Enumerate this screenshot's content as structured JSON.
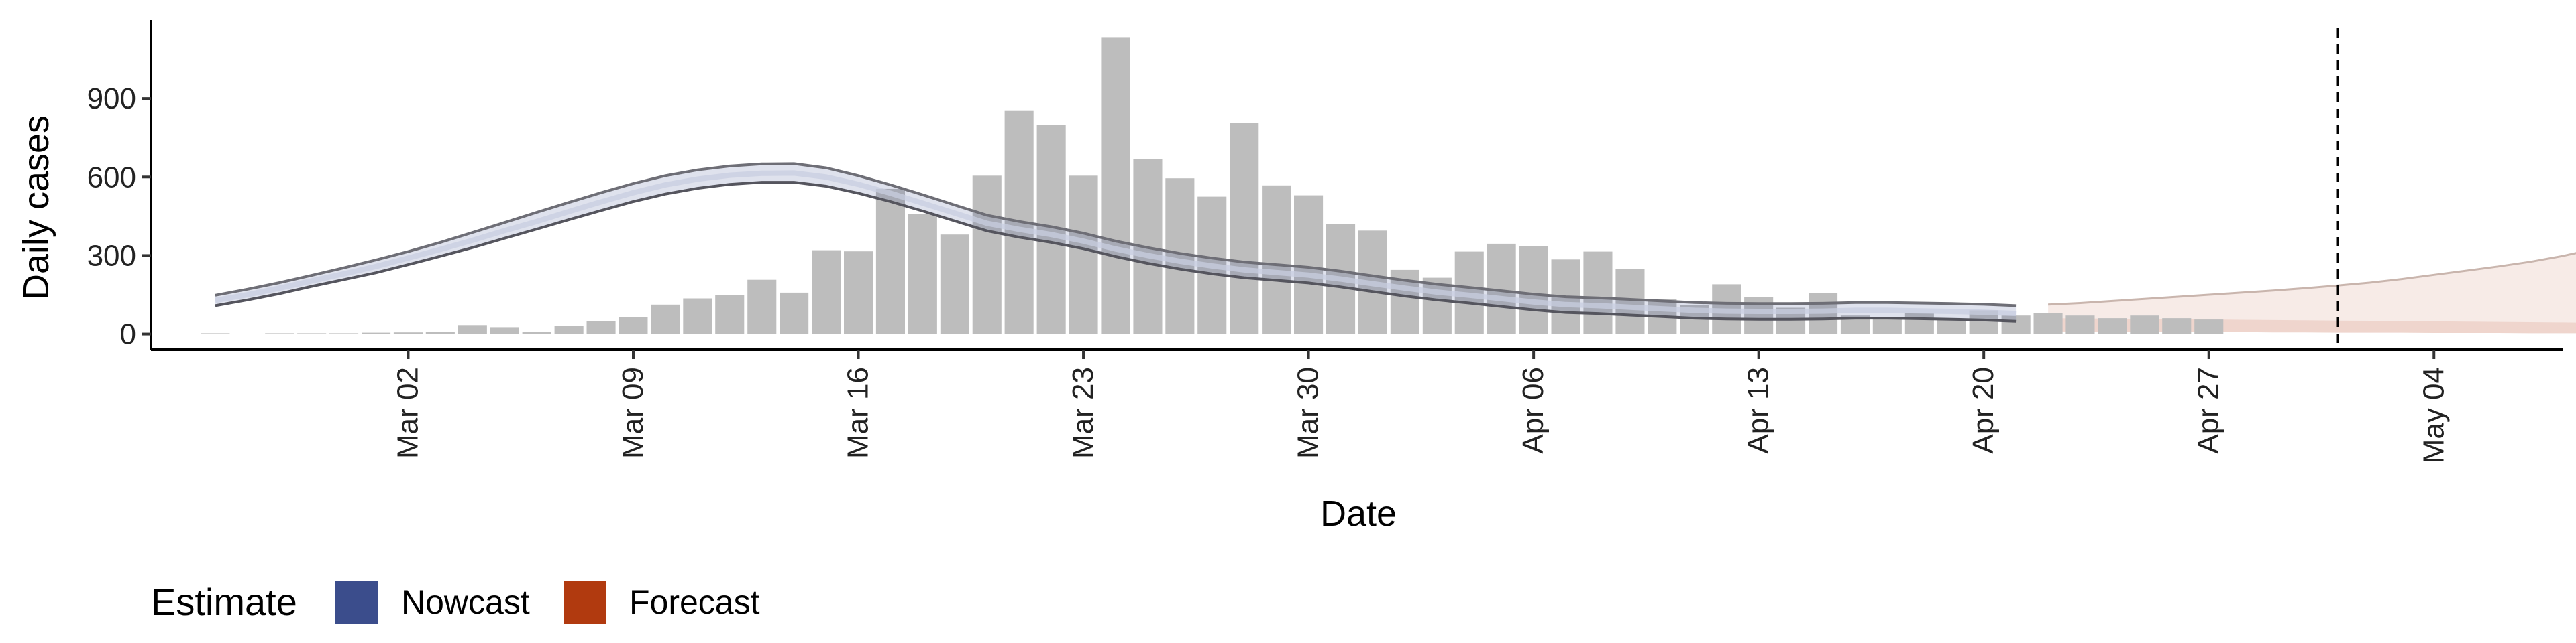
{
  "chart_data": {
    "type": "bar",
    "xlabel": "Date",
    "ylabel": "Daily cases",
    "x_ticks": [
      "Mar 02",
      "Mar 09",
      "Mar 16",
      "Mar 23",
      "Mar 30",
      "Apr 06",
      "Apr 13",
      "Apr 20",
      "Apr 27",
      "May 04"
    ],
    "y_ticks": [
      "0",
      "300",
      "600",
      "900"
    ],
    "ylim": [
      -60,
      1200
    ],
    "xlim": [
      "2020-02-23",
      "2020-05-08"
    ],
    "grid": false,
    "legend_position": "bottom-left",
    "legend": {
      "title": "Estimate",
      "items": [
        {
          "label": "Nowcast",
          "color": "#3b4d8c"
        },
        {
          "label": "Forecast",
          "color": "#b13a0f"
        }
      ]
    },
    "colors": {
      "bars": "#bdbdbd",
      "nowcast": "#3b4d8c",
      "forecast": "#b13a0f",
      "line": "#555555"
    },
    "reference_line_date": "2020-05-01",
    "bars": {
      "start_date": "2020-02-25",
      "values": [
        3,
        1,
        3,
        3,
        3,
        5,
        6,
        9,
        34,
        26,
        7,
        32,
        50,
        63,
        112,
        136,
        150,
        207,
        158,
        320,
        316,
        555,
        460,
        380,
        605,
        855,
        800,
        605,
        1135,
        668,
        595,
        525,
        808,
        568,
        530,
        420,
        395,
        245,
        215,
        315,
        345,
        335,
        285,
        315,
        250,
        132,
        110,
        190,
        140,
        100,
        155,
        70,
        60,
        80,
        55,
        90,
        70,
        80,
        70,
        60,
        70,
        60,
        55
      ]
    },
    "nowcast": {
      "start_date": "2020-02-25",
      "median": [
        128,
        150,
        175,
        203,
        230,
        258,
        290,
        323,
        358,
        395,
        430,
        468,
        505,
        540,
        570,
        592,
        607,
        614,
        615,
        600,
        572,
        538,
        500,
        462,
        423,
        400,
        380,
        355,
        325,
        300,
        278,
        260,
        245,
        235,
        225,
        210,
        192,
        175,
        160,
        148,
        135,
        122,
        112,
        108,
        102,
        96,
        90,
        87,
        86,
        86,
        87,
        90,
        90,
        88,
        86,
        83,
        78
      ],
      "upper": [
        148,
        171,
        196,
        224,
        253,
        283,
        315,
        350,
        388,
        426,
        465,
        503,
        540,
        575,
        605,
        627,
        642,
        650,
        651,
        635,
        605,
        570,
        532,
        493,
        454,
        430,
        410,
        385,
        355,
        330,
        308,
        290,
        275,
        265,
        255,
        240,
        222,
        205,
        190,
        178,
        165,
        152,
        142,
        138,
        132,
        126,
        120,
        117,
        116,
        116,
        117,
        120,
        120,
        118,
        116,
        113,
        108
      ],
      "lower": [
        108,
        130,
        154,
        182,
        208,
        234,
        265,
        297,
        330,
        366,
        401,
        437,
        472,
        506,
        535,
        557,
        572,
        580,
        580,
        565,
        538,
        506,
        470,
        432,
        394,
        370,
        350,
        326,
        296,
        270,
        248,
        230,
        215,
        205,
        195,
        180,
        162,
        145,
        130,
        118,
        105,
        92,
        82,
        78,
        72,
        66,
        60,
        57,
        56,
        56,
        57,
        60,
        60,
        58,
        56,
        53,
        48
      ]
    },
    "forecast": {
      "start_date": "2020-04-22",
      "upper": [
        112,
        118,
        126,
        134,
        142,
        150,
        158,
        166,
        175,
        185,
        196,
        210,
        226,
        242,
        258,
        276,
        298,
        325,
        352
      ],
      "median": [
        60,
        59,
        58,
        57,
        56,
        55,
        54,
        53,
        52,
        51,
        50,
        49,
        48,
        47,
        46,
        45,
        44,
        43,
        42
      ],
      "lower": [
        10,
        9,
        9,
        8,
        8,
        7,
        7,
        6,
        6,
        5,
        5,
        5,
        4,
        4,
        4,
        3,
        3,
        3,
        3
      ]
    }
  }
}
